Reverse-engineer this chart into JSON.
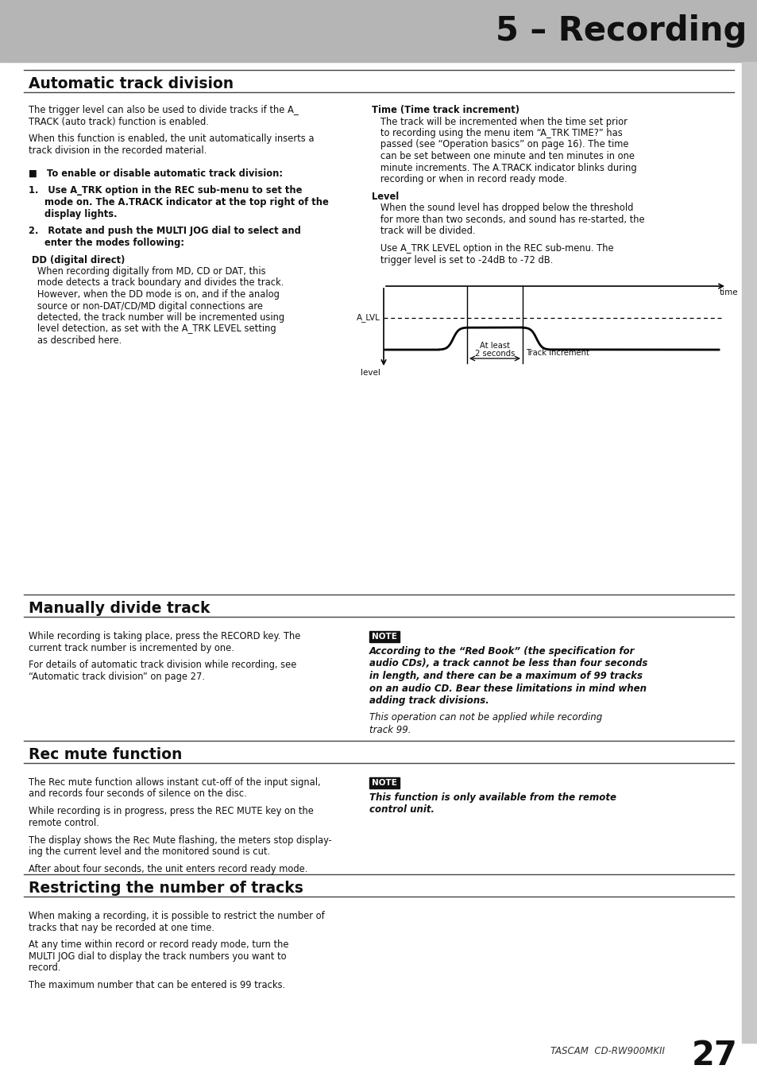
{
  "page_title": "5 – Recording",
  "header_bg": "#b5b5b5",
  "header_text_color": "#111111",
  "page_bg": "#ffffff",
  "right_bar_color": "#c8c8c8",
  "footer_text": "TASCAM  CD-RW900MKII",
  "page_number": "27",
  "section1_title": "Automatic track division",
  "section2_title": "Manually divide track",
  "section3_title": "Rec mute function",
  "section4_title": "Restricting the number of tracks",
  "note1_title": "NOTE",
  "note2_title": "NOTE",
  "sec1_left_lines": [
    "The trigger level can also be used to divide tracks if the A_",
    "TRACK (auto track) function is enabled.",
    "",
    "When this function is enabled, the unit automatically inserts a",
    "track division in the recorded material.",
    "",
    "",
    "■   To enable or disable automatic track division:",
    "",
    "1.   Use A_TRK option in the REC sub-menu to set the",
    "     mode on. The A.TRACK indicator at the top right of the",
    "     display lights.",
    "",
    "2.   Rotate and push the MULTI JOG dial to select and",
    "     enter the modes following:",
    "",
    " DD (digital direct)",
    "   When recording digitally from MD, CD or DAT, this",
    "   mode detects a track boundary and divides the track.",
    "   However, when the DD mode is on, and if the analog",
    "   source or non-DAT/CD/MD digital connections are",
    "   detected, the track number will be incremented using",
    "   level detection, as set with the A_TRK LEVEL setting",
    "   as described here."
  ],
  "sec1_left_bold": [
    false,
    false,
    false,
    false,
    false,
    false,
    false,
    true,
    false,
    true,
    true,
    true,
    false,
    true,
    true,
    false,
    true,
    false,
    false,
    false,
    false,
    false,
    false,
    false
  ],
  "sec1_right_lines": [
    "Time (Time track increment)",
    "   The track will be incremented when the time set prior",
    "   to recording using the menu item “A_TRK TIME?” has",
    "   passed (see “Operation basics” on page 16). The time",
    "   can be set between one minute and ten minutes in one",
    "   minute increments. The A.TRACK indicator blinks during",
    "   recording or when in record ready mode.",
    "",
    "Level",
    "   When the sound level has dropped below the threshold",
    "   for more than two seconds, and sound has re-started, the",
    "   track will be divided.",
    "",
    "   Use A_TRK LEVEL option in the REC sub-menu. The",
    "   trigger level is set to -24dB to -72 dB."
  ],
  "sec1_right_bold": [
    true,
    false,
    false,
    false,
    false,
    false,
    false,
    false,
    true,
    false,
    false,
    false,
    false,
    false,
    false
  ],
  "sec2_left_lines": [
    "While recording is taking place, press the RECORD key. The",
    "current track number is incremented by one.",
    "",
    "For details of automatic track division while recording, see",
    "“Automatic track division” on page 27."
  ],
  "note1_lines": [
    "According to the “Red Book” (the specification for",
    "audio CDs), a track cannot be less than four seconds",
    "in length, and there can be a maximum of 99 tracks",
    "on an audio CD. Bear these limitations in mind when",
    "adding track divisions.",
    "",
    "This operation can not be applied while recording",
    "track 99."
  ],
  "note1_bold": [
    true,
    true,
    true,
    true,
    true,
    false,
    false,
    false
  ],
  "sec3_left_lines": [
    "The Rec mute function allows instant cut-off of the input signal,",
    "and records four seconds of silence on the disc.",
    "",
    "While recording is in progress, press the REC MUTE key on the",
    "remote control.",
    "",
    "The display shows the Rec Mute flashing, the meters stop display-",
    "ing the current level and the monitored sound is cut.",
    "",
    "After about four seconds, the unit enters record ready mode."
  ],
  "note2_lines": [
    "This function is only available from the remote",
    "control unit."
  ],
  "sec4_left_lines": [
    "When making a recording, it is possible to restrict the number of",
    "tracks that nay be recorded at one time.",
    "",
    "At any time within record or record ready mode, turn the",
    "MULTI JOG dial to display the track numbers you want to",
    "record.",
    "",
    "The maximum number that can be entered is 99 tracks."
  ]
}
